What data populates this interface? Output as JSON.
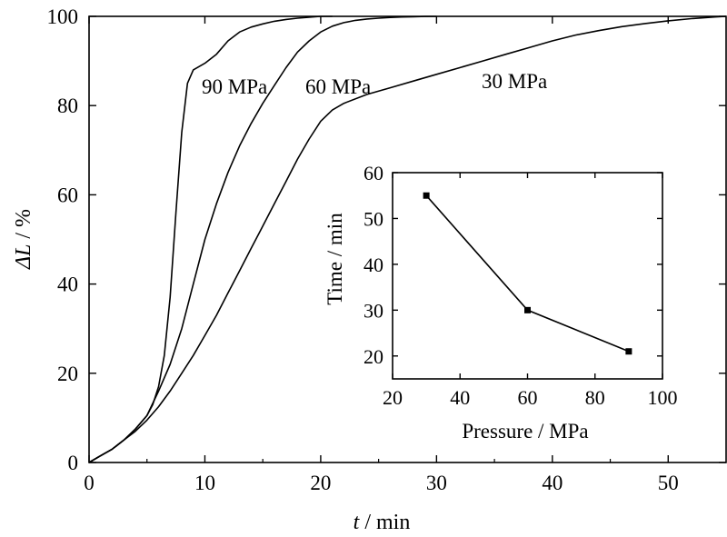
{
  "chart_data": [
    {
      "type": "line",
      "title": "",
      "xlabel": {
        "var": "t",
        "unit": " / min"
      },
      "ylabel": {
        "var": "ΔL",
        "unit": " / %"
      },
      "xlim": [
        0,
        55
      ],
      "ylim": [
        0,
        100
      ],
      "xticks": [
        "0",
        "10",
        "20",
        "30",
        "40",
        "50"
      ],
      "yticks": [
        "0",
        "20",
        "40",
        "60",
        "80",
        "100"
      ],
      "grid": false,
      "legend": "none (curves labeled directly)",
      "series": [
        {
          "name": "90 MPa",
          "x": [
            0,
            1,
            2,
            3,
            4,
            5,
            5.5,
            6,
            6.5,
            7,
            7.5,
            8,
            8.5,
            9,
            10,
            11,
            12,
            13,
            14,
            15,
            16,
            17,
            18,
            19,
            20,
            21
          ],
          "y": [
            0,
            1.5,
            3,
            5,
            7.5,
            10.5,
            13,
            17,
            24,
            37,
            56,
            74,
            85,
            88,
            89.5,
            91.5,
            94.5,
            96.5,
            97.6,
            98.3,
            98.9,
            99.3,
            99.6,
            99.8,
            100,
            100
          ]
        },
        {
          "name": "60 MPa",
          "x": [
            0,
            1,
            2,
            3,
            4,
            5,
            6,
            7,
            8,
            9,
            10,
            11,
            12,
            13,
            14,
            15,
            16,
            17,
            18,
            19,
            20,
            21,
            22,
            23,
            24,
            25,
            26,
            27,
            28,
            29,
            30
          ],
          "y": [
            0,
            1.5,
            3,
            5,
            7.5,
            10.5,
            16,
            22,
            30,
            40,
            50,
            58,
            65,
            71,
            76,
            80.5,
            84.5,
            88.5,
            92,
            94.5,
            96.5,
            97.8,
            98.6,
            99.1,
            99.4,
            99.6,
            99.75,
            99.85,
            99.9,
            99.97,
            100
          ]
        },
        {
          "name": "30 MPa",
          "x": [
            0,
            1,
            2,
            3,
            4,
            5,
            6,
            7,
            8,
            9,
            10,
            11,
            12,
            13,
            14,
            15,
            16,
            17,
            18,
            19,
            20,
            21,
            22,
            24,
            26,
            28,
            30,
            32,
            34,
            36,
            38,
            40,
            42,
            44,
            46,
            48,
            50,
            52,
            54,
            55
          ],
          "y": [
            0,
            1.5,
            3,
            5,
            7,
            9.5,
            12.5,
            16,
            20,
            24,
            28.5,
            33,
            38,
            43,
            48,
            53,
            58,
            63,
            68,
            72.5,
            76.5,
            79,
            80.5,
            82.5,
            84,
            85.5,
            87,
            88.5,
            90,
            91.5,
            93,
            94.5,
            95.8,
            96.8,
            97.7,
            98.4,
            99,
            99.5,
            99.85,
            100
          ]
        }
      ]
    },
    {
      "type": "line",
      "title": "",
      "inset": true,
      "xlabel": "Pressure / MPa",
      "ylabel": "Time / min",
      "xlim": [
        20,
        100
      ],
      "ylim": [
        15,
        60
      ],
      "xticks": [
        "20",
        "40",
        "60",
        "80",
        "100"
      ],
      "yticks": [
        "20",
        "30",
        "40",
        "50",
        "60"
      ],
      "grid": false,
      "series": [
        {
          "x": [
            30,
            60,
            90
          ],
          "y": [
            55,
            30,
            21
          ]
        }
      ]
    }
  ]
}
